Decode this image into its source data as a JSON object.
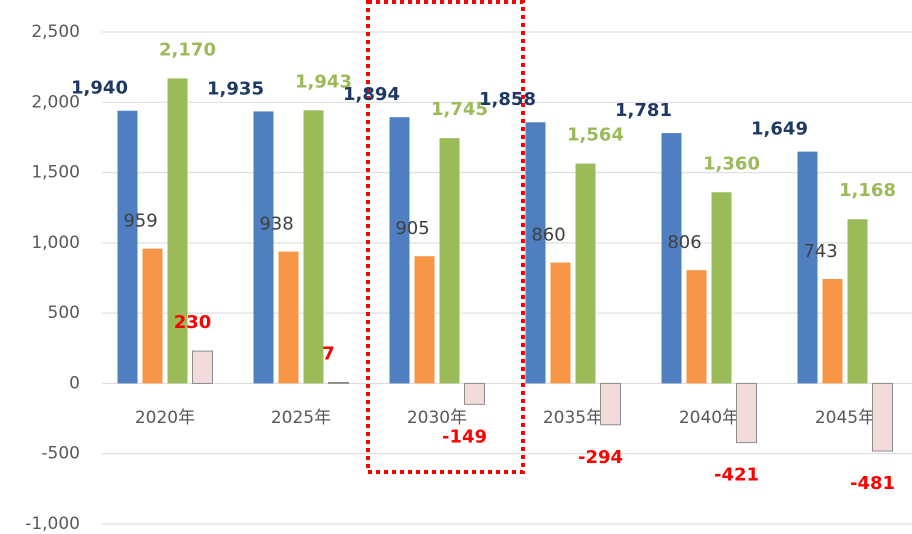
{
  "chart_data": {
    "type": "bar",
    "categories": [
      "2020年",
      "2025年",
      "2030年",
      "2035年",
      "2040年",
      "2045年"
    ],
    "series": [
      {
        "color": "#4f7fc0",
        "label_color": "#1f3864",
        "values": [
          1940,
          1935,
          1894,
          1858,
          1781,
          1649
        ],
        "value_labels": [
          "1,940",
          "1,935",
          "1,894",
          "1,858",
          "1,781",
          "1,649"
        ]
      },
      {
        "color": "#f79646",
        "label_color": "#404040",
        "values": [
          959,
          938,
          905,
          860,
          806,
          743
        ]
      },
      {
        "color": "#9bbb59",
        "label_color": "#9bbb59",
        "values": [
          2170,
          1943,
          1745,
          1564,
          1360,
          1168
        ],
        "value_labels": [
          "2,170",
          "1,943",
          "1,745",
          "1,564",
          "1,360",
          "1,168"
        ]
      },
      {
        "color": "#f2dcdb",
        "label_color": "#ff0000",
        "values": [
          230,
          7,
          -149,
          -294,
          -421,
          -481
        ]
      }
    ],
    "ylim": [
      -1000,
      2500
    ],
    "yticks": [
      {
        "value": -1000,
        "label": "-1,000"
      },
      -500,
      0,
      500,
      {
        "value": 1000,
        "label": "1,000"
      },
      {
        "value": 1500,
        "label": "1,500"
      },
      {
        "value": 2000,
        "label": "2,000"
      },
      {
        "value": 2500,
        "label": "2,500"
      }
    ],
    "grid": true
  }
}
